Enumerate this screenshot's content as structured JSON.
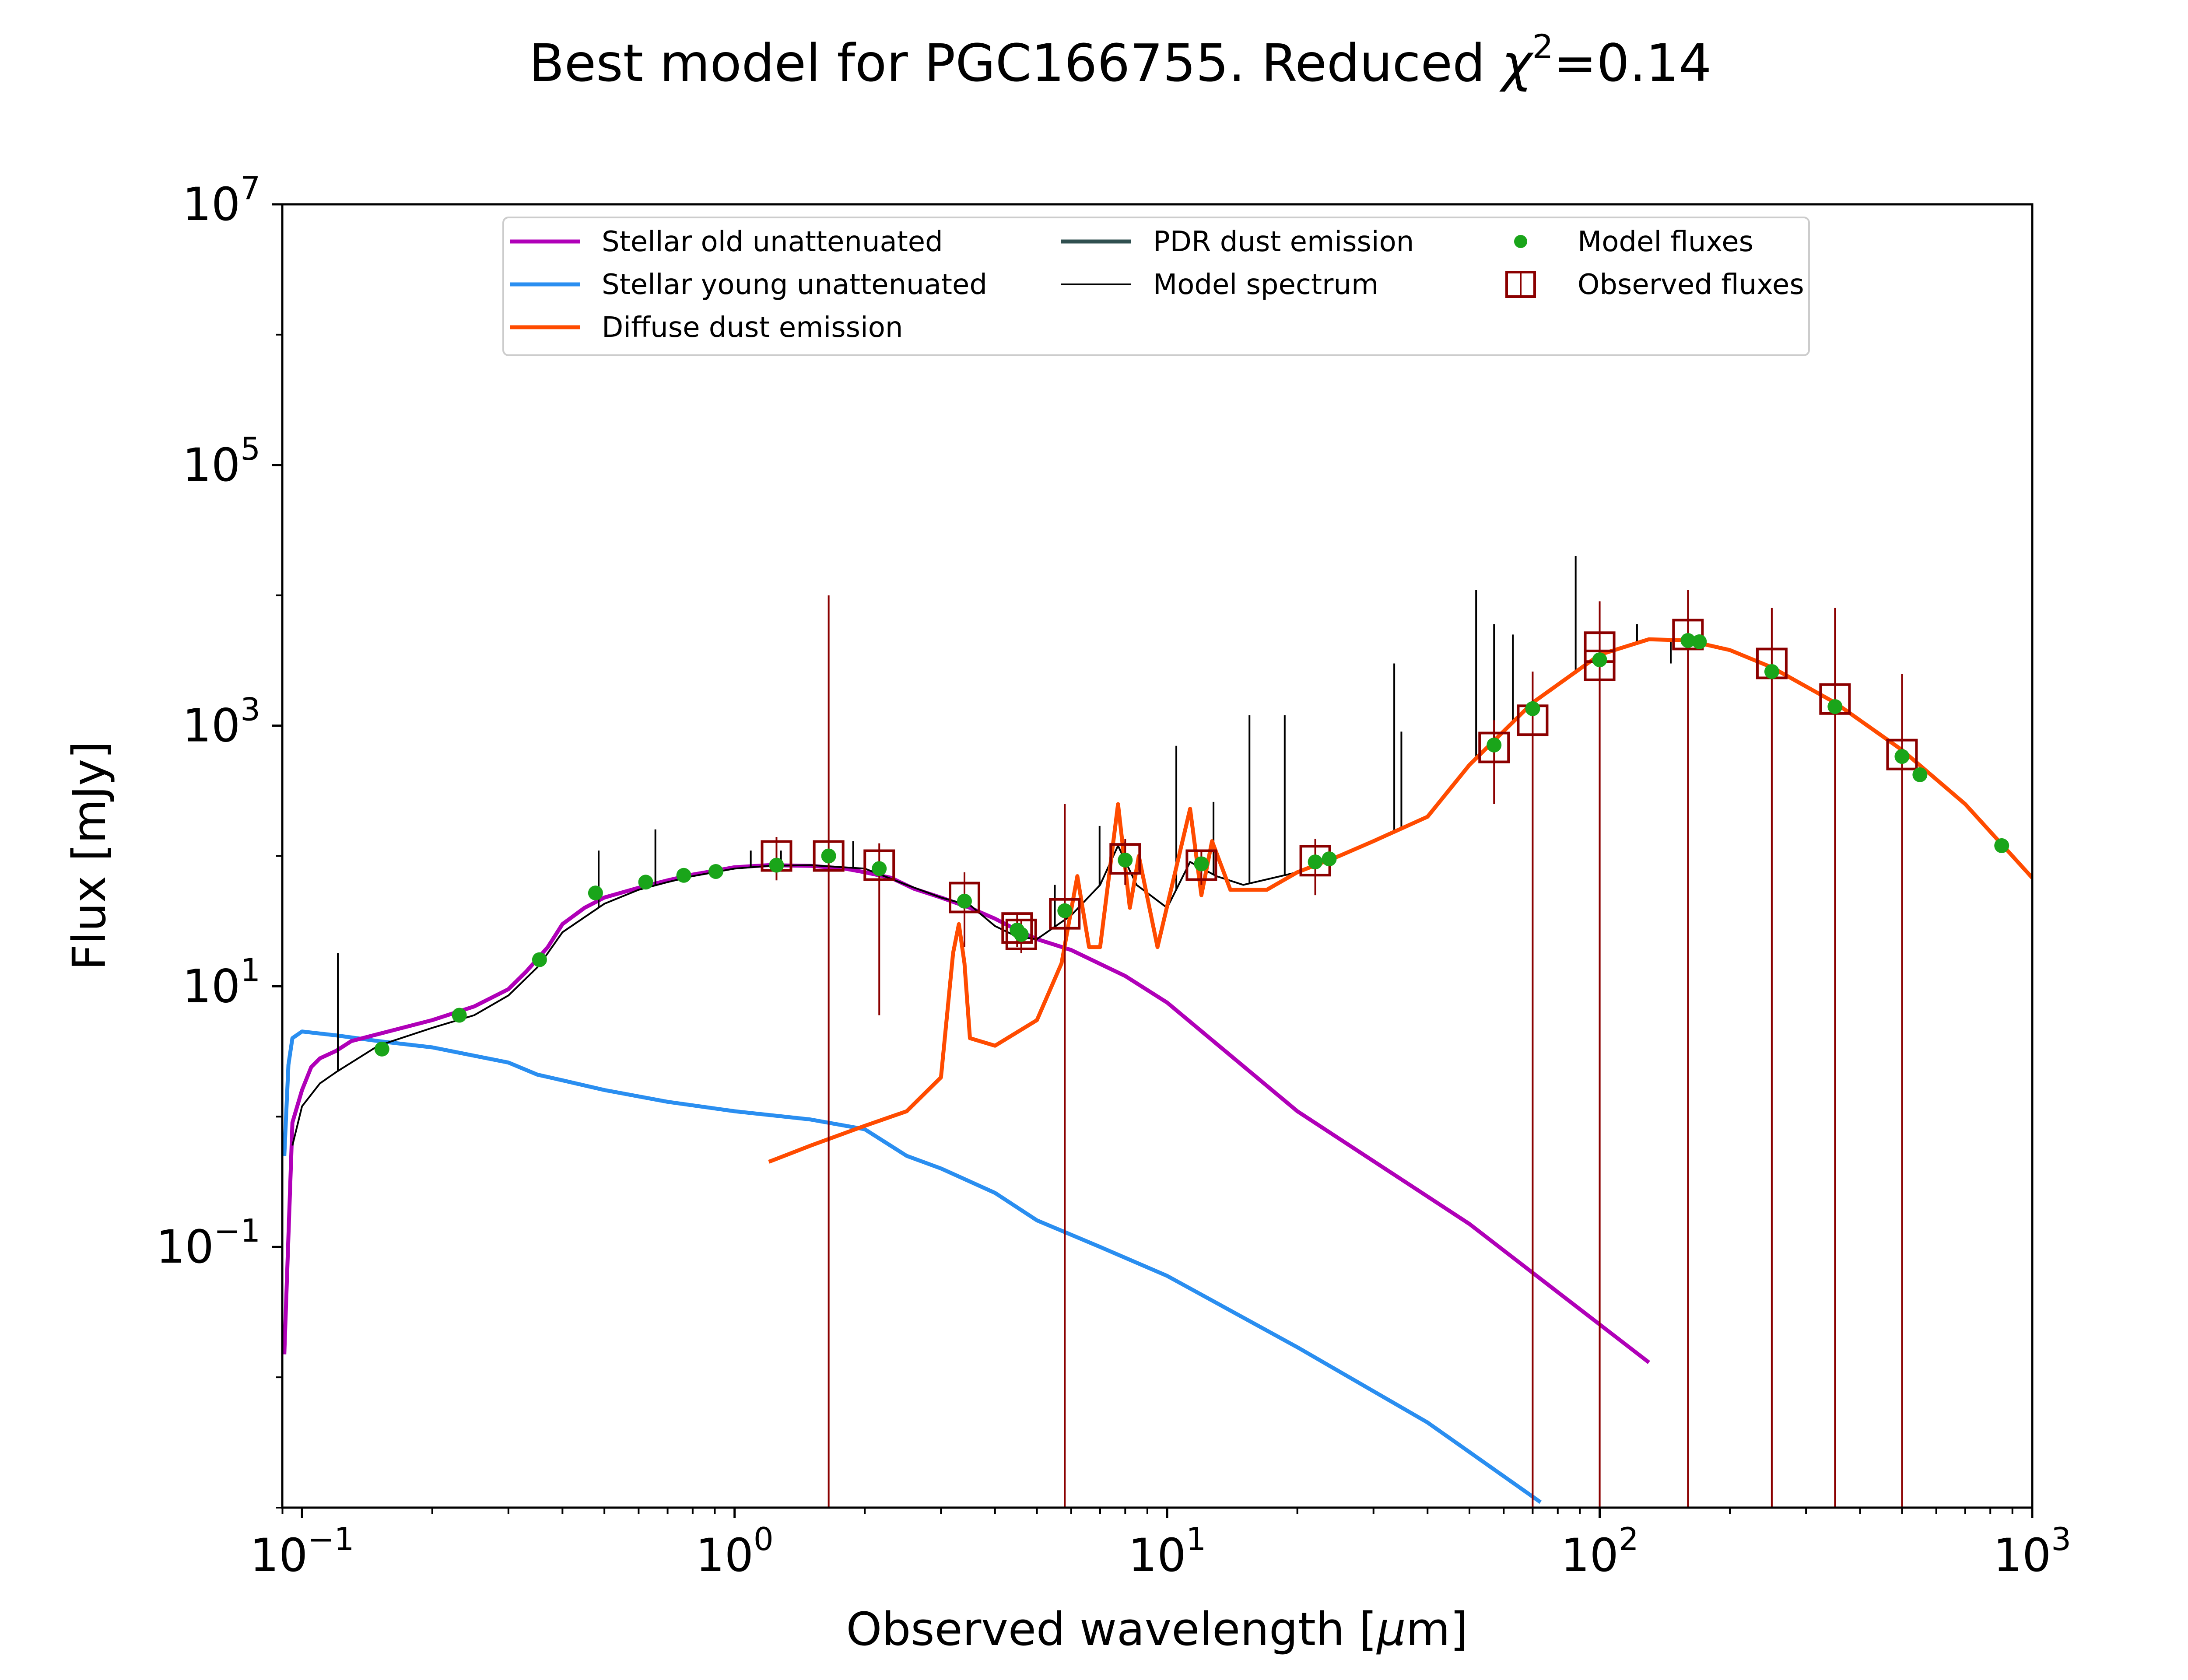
{
  "chart_data": {
    "type": "line",
    "title_prefix": "Best model for PGC166755. Reduced ",
    "title_chi": "χ",
    "title_sup": "2",
    "title_suffix": "=0.14",
    "xlabel_prefix": "Observed wavelength [",
    "xlabel_mu": "μ",
    "xlabel_suffix": "m]",
    "ylabel": "Flux [mJy]",
    "xscale": "log",
    "yscale": "log",
    "xlim": [
      0.09,
      1000
    ],
    "ylim": [
      0.001,
      10000000
    ],
    "grid": false,
    "legend_position": "top-center",
    "xticks": [
      {
        "value": 0.1,
        "base": "10",
        "exp": "−1"
      },
      {
        "value": 1,
        "base": "10",
        "exp": "0"
      },
      {
        "value": 10,
        "base": "10",
        "exp": "1"
      },
      {
        "value": 100,
        "base": "10",
        "exp": "2"
      },
      {
        "value": 1000,
        "base": "10",
        "exp": "3"
      }
    ],
    "yticks": [
      {
        "value": 0.1,
        "base": "10",
        "exp": "−1"
      },
      {
        "value": 10,
        "base": "10",
        "exp": "1"
      },
      {
        "value": 1000,
        "base": "10",
        "exp": "3"
      },
      {
        "value": 100000,
        "base": "10",
        "exp": "5"
      },
      {
        "value": 10000000,
        "base": "10",
        "exp": "7"
      }
    ],
    "series": [
      {
        "name": "Stellar old unattenuated",
        "color": "#b000b8",
        "points": [
          [
            0.091,
            0.015
          ],
          [
            0.095,
            0.9
          ],
          [
            0.1,
            1.6
          ],
          [
            0.105,
            2.4
          ],
          [
            0.11,
            2.8
          ],
          [
            0.12,
            3.2
          ],
          [
            0.13,
            3.8
          ],
          [
            0.15,
            4.3
          ],
          [
            0.2,
            5.5
          ],
          [
            0.25,
            7
          ],
          [
            0.3,
            9.5
          ],
          [
            0.33,
            13
          ],
          [
            0.37,
            20
          ],
          [
            0.4,
            30
          ],
          [
            0.45,
            40
          ],
          [
            0.5,
            48
          ],
          [
            0.6,
            57
          ],
          [
            0.7,
            65
          ],
          [
            0.8,
            72
          ],
          [
            0.9,
            77
          ],
          [
            1.0,
            82
          ],
          [
            1.2,
            85
          ],
          [
            1.5,
            84
          ],
          [
            1.8,
            80
          ],
          [
            2.0,
            75
          ],
          [
            2.3,
            68
          ],
          [
            2.6,
            56
          ],
          [
            3.0,
            48
          ],
          [
            3.5,
            40
          ],
          [
            4.0,
            33
          ],
          [
            4.5,
            27
          ],
          [
            5.0,
            23
          ],
          [
            6.0,
            19
          ],
          [
            8.0,
            12
          ],
          [
            10,
            7.5
          ],
          [
            20,
            1.1
          ],
          [
            50,
            0.15
          ],
          [
            80,
            0.045
          ],
          [
            130,
            0.013
          ]
        ]
      },
      {
        "name": "Stellar young unattenuated",
        "color": "#2a8ef0",
        "points": [
          [
            0.091,
            0.5
          ],
          [
            0.093,
            2.5
          ],
          [
            0.095,
            4.0
          ],
          [
            0.1,
            4.5
          ],
          [
            0.12,
            4.2
          ],
          [
            0.15,
            3.8
          ],
          [
            0.2,
            3.4
          ],
          [
            0.3,
            2.6
          ],
          [
            0.35,
            2.1
          ],
          [
            0.4,
            1.9
          ],
          [
            0.5,
            1.6
          ],
          [
            0.7,
            1.3
          ],
          [
            1.0,
            1.1
          ],
          [
            1.5,
            0.95
          ],
          [
            2.0,
            0.8
          ],
          [
            2.5,
            0.5
          ],
          [
            3.0,
            0.4
          ],
          [
            4.0,
            0.26
          ],
          [
            5.0,
            0.16
          ],
          [
            7.0,
            0.1
          ],
          [
            10,
            0.06
          ],
          [
            20,
            0.017
          ],
          [
            40,
            0.0045
          ],
          [
            73,
            0.0011
          ]
        ]
      },
      {
        "name": "Diffuse dust emission",
        "color": "#ff4b00",
        "points": [
          [
            1.2,
            0.45
          ],
          [
            1.5,
            0.6
          ],
          [
            2.0,
            0.85
          ],
          [
            2.5,
            1.1
          ],
          [
            3.0,
            2.0
          ],
          [
            3.2,
            18
          ],
          [
            3.3,
            30
          ],
          [
            3.4,
            15
          ],
          [
            3.5,
            4
          ],
          [
            4.0,
            3.5
          ],
          [
            5.0,
            5.5
          ],
          [
            5.7,
            15
          ],
          [
            6.2,
            70
          ],
          [
            6.6,
            20
          ],
          [
            7.0,
            20
          ],
          [
            7.7,
            250
          ],
          [
            8.2,
            40
          ],
          [
            8.6,
            100
          ],
          [
            9.5,
            20
          ],
          [
            11.3,
            230
          ],
          [
            12.0,
            50
          ],
          [
            12.7,
            130
          ],
          [
            14,
            55
          ],
          [
            17,
            55
          ],
          [
            20,
            75
          ],
          [
            25,
            100
          ],
          [
            30,
            130
          ],
          [
            40,
            200
          ],
          [
            50,
            500
          ],
          [
            70,
            1500
          ],
          [
            100,
            3500
          ],
          [
            130,
            4600
          ],
          [
            160,
            4500
          ],
          [
            200,
            3800
          ],
          [
            250,
            2800
          ],
          [
            350,
            1500
          ],
          [
            500,
            650
          ],
          [
            700,
            250
          ],
          [
            1000,
            68
          ]
        ]
      },
      {
        "name": "PDR dust emission",
        "color": "#2f4f4f",
        "points": []
      },
      {
        "name": "Model spectrum",
        "color": "#000000",
        "points": [
          [
            0.095,
            0.6
          ],
          [
            0.1,
            1.2
          ],
          [
            0.11,
            1.8
          ],
          [
            0.12,
            2.2
          ],
          [
            0.15,
            3.5
          ],
          [
            0.2,
            4.8
          ],
          [
            0.25,
            6
          ],
          [
            0.3,
            8.5
          ],
          [
            0.35,
            14
          ],
          [
            0.37,
            18
          ],
          [
            0.4,
            26
          ],
          [
            0.5,
            43
          ],
          [
            0.6,
            55
          ],
          [
            0.7,
            63
          ],
          [
            0.8,
            70
          ],
          [
            1.0,
            80
          ],
          [
            1.2,
            84
          ],
          [
            1.5,
            85
          ],
          [
            2.0,
            80
          ],
          [
            2.5,
            60
          ],
          [
            3.0,
            48
          ],
          [
            3.3,
            44
          ],
          [
            3.5,
            42
          ],
          [
            4.0,
            29
          ],
          [
            4.5,
            24
          ],
          [
            5.0,
            23
          ],
          [
            6.0,
            35
          ],
          [
            7.0,
            60
          ],
          [
            7.7,
            120
          ],
          [
            8.5,
            60
          ],
          [
            10,
            40
          ],
          [
            11.3,
            90
          ],
          [
            13,
            70
          ],
          [
            15,
            60
          ],
          [
            20,
            75
          ],
          [
            25,
            100
          ],
          [
            30,
            130
          ],
          [
            40,
            200
          ],
          [
            50,
            500
          ],
          [
            70,
            1500
          ],
          [
            100,
            3500
          ],
          [
            130,
            4600
          ],
          [
            160,
            4500
          ],
          [
            200,
            3800
          ],
          [
            250,
            2800
          ],
          [
            350,
            1500
          ],
          [
            500,
            650
          ],
          [
            700,
            250
          ],
          [
            1000,
            68
          ]
        ]
      },
      {
        "name": "Model fluxes",
        "color": "#1aa51a",
        "points": [
          [
            0.153,
            3.3
          ],
          [
            0.231,
            6.0
          ],
          [
            0.354,
            16
          ],
          [
            0.477,
            52
          ],
          [
            0.623,
            63
          ],
          [
            0.763,
            71
          ],
          [
            0.905,
            76
          ],
          [
            1.25,
            85
          ],
          [
            1.65,
            100
          ],
          [
            2.16,
            80
          ],
          [
            3.4,
            45
          ],
          [
            4.5,
            27
          ],
          [
            4.6,
            25
          ],
          [
            5.8,
            38
          ],
          [
            8.0,
            93
          ],
          [
            12,
            87
          ],
          [
            22,
            90
          ],
          [
            23.7,
            95
          ],
          [
            57,
            710
          ],
          [
            70,
            1350
          ],
          [
            100,
            3200
          ],
          [
            160,
            4500
          ],
          [
            170,
            4400
          ],
          [
            250,
            2600
          ],
          [
            350,
            1400
          ],
          [
            500,
            580
          ],
          [
            550,
            420
          ],
          [
            850,
            120
          ]
        ]
      },
      {
        "name": "Observed fluxes",
        "color": "#8b0000",
        "points": [
          [
            1.25,
            100,
            65,
            140
          ],
          [
            1.65,
            100,
            0.001,
            10000
          ],
          [
            2.16,
            85,
            6,
            125
          ],
          [
            3.4,
            48,
            20,
            75
          ],
          [
            4.5,
            28,
            20,
            36
          ],
          [
            4.6,
            25,
            18,
            32
          ],
          [
            5.8,
            36,
            0.001,
            250
          ],
          [
            8.0,
            95,
            60,
            135
          ],
          [
            12,
            85,
            60,
            110
          ],
          [
            22,
            92,
            50,
            135
          ],
          [
            57,
            680,
            250,
            1100
          ],
          [
            70,
            1100,
            0.001,
            2600
          ],
          [
            100,
            4000,
            0.001,
            9000
          ],
          [
            100,
            2900,
            0.001,
            5000
          ],
          [
            160,
            5000,
            0.001,
            11000
          ],
          [
            250,
            3000,
            0.001,
            8000
          ],
          [
            350,
            1600,
            0.001,
            8000
          ],
          [
            500,
            600,
            0.001,
            2500
          ]
        ]
      }
    ],
    "emission_lines": [
      [
        0.121,
        18
      ],
      [
        0.485,
        110
      ],
      [
        0.656,
        160
      ],
      [
        1.09,
        110
      ],
      [
        1.28,
        110
      ],
      [
        1.88,
        130
      ],
      [
        5.5,
        60
      ],
      [
        6.98,
        170
      ],
      [
        10.5,
        700
      ],
      [
        12.8,
        260
      ],
      [
        15.5,
        1200
      ],
      [
        18.7,
        1200
      ],
      [
        33.5,
        3000
      ],
      [
        34.8,
        900
      ],
      [
        51.8,
        11000
      ],
      [
        57,
        6000
      ],
      [
        63,
        5000
      ],
      [
        88,
        20000
      ],
      [
        122,
        6000
      ],
      [
        146,
        3000
      ]
    ],
    "legend": [
      {
        "label": "Stellar old unattenuated",
        "kind": "line",
        "color": "#b000b8"
      },
      {
        "label": "Stellar young unattenuated",
        "kind": "line",
        "color": "#2a8ef0"
      },
      {
        "label": "Diffuse dust emission",
        "kind": "line",
        "color": "#ff4b00"
      },
      {
        "label": "PDR dust emission",
        "kind": "line",
        "color": "#2f4f4f"
      },
      {
        "label": "Model spectrum",
        "kind": "thinline",
        "color": "#000000"
      },
      {
        "label": "Model fluxes",
        "kind": "dot",
        "color": "#1aa51a"
      },
      {
        "label": "Observed fluxes",
        "kind": "square",
        "color": "#8b0000"
      }
    ]
  }
}
